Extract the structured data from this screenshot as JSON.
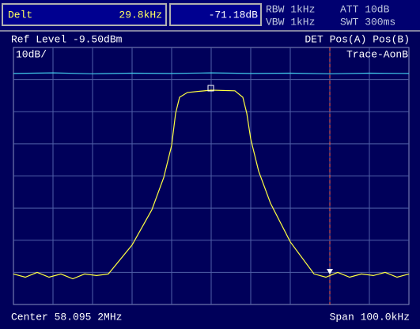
{
  "header": {
    "delta_label": "Delt",
    "delta_freq": "29.8kHz",
    "delta_level": "-71.18dB",
    "rbw": "RBW 1kHz",
    "vbw": "VBW 1kHz",
    "att": "ATT 10dB",
    "swt": "SWT 300ms"
  },
  "screen": {
    "ref_level": "Ref Level -9.50dBm",
    "detector": "DET  Pos(A) Pos(B)",
    "scale": "10dB/",
    "trace_mode": "Trace-AonB",
    "center": "Center 58.095 2MHz",
    "span": "Span 100.0kHz"
  },
  "trace": {
    "xlim": [
      -50,
      50
    ],
    "ylim": [
      -89.5,
      -9.5
    ],
    "traces": [
      {
        "color": "#ffff40",
        "x": [
          -50,
          -47,
          -44,
          -41,
          -38,
          -35,
          -32,
          -29,
          -26,
          -20,
          -15,
          -12,
          -10,
          -9,
          -8,
          -6,
          0,
          6,
          8,
          9,
          10,
          12,
          15,
          20,
          26,
          29,
          32,
          35,
          38,
          41,
          44,
          47,
          50
        ],
        "values": [
          -80,
          -81,
          -79.5,
          -81,
          -80,
          -81.5,
          -80,
          -80.5,
          -80,
          -71,
          -60,
          -50,
          -40,
          -30,
          -25,
          -23.5,
          -22.8,
          -23,
          -25,
          -30,
          -38,
          -48,
          -58,
          -70,
          -80,
          -81,
          -79.5,
          -81,
          -80,
          -80.5,
          -79.5,
          -81,
          -80
        ]
      },
      {
        "color": "#40c8e8",
        "x": [
          -50,
          -40,
          -30,
          -20,
          -10,
          0,
          10,
          20,
          30,
          40,
          50
        ],
        "values": [
          -17.6,
          -17.4,
          -17.7,
          -17.5,
          -17.6,
          -17.4,
          -17.6,
          -17.5,
          -17.7,
          -17.5,
          -17.6
        ]
      }
    ]
  }
}
